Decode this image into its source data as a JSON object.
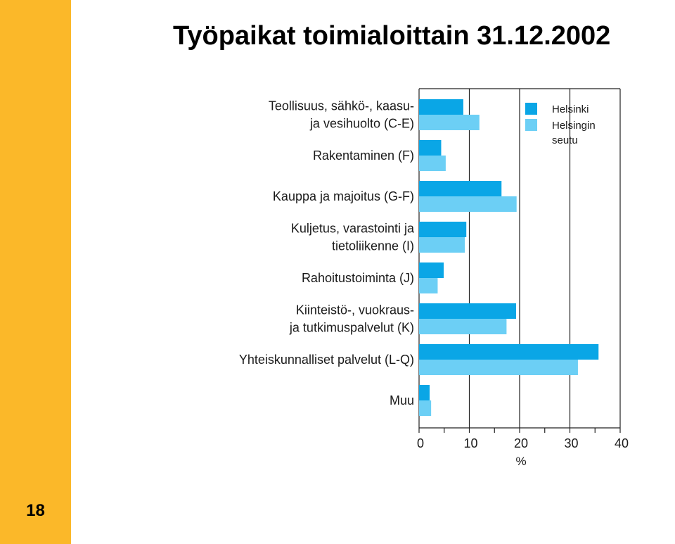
{
  "page": {
    "number": "18"
  },
  "chart_data": {
    "type": "bar",
    "orientation": "horizontal",
    "title": "Työpaikat toimialoittain 31.12.2002",
    "categories": [
      [
        "Teollisuus, sähkö-, kaasu-",
        "ja vesihuolto (C-E)"
      ],
      [
        "Rakentaminen (F)"
      ],
      [
        "Kauppa ja majoitus (G-F)"
      ],
      [
        "Kuljetus, varastointi ja",
        "tietoliikenne (I)"
      ],
      [
        "Rahoitustoiminta (J)"
      ],
      [
        "Kiinteistö-, vuokraus-",
        "ja tutkimuspalvelut (K)"
      ],
      [
        "Yhteiskunnalliset palvelut (L-Q)"
      ],
      [
        "Muu"
      ]
    ],
    "series": [
      {
        "name": "Helsinki",
        "color": "#0aa6e6",
        "values": [
          8.8,
          4.4,
          16.4,
          9.4,
          4.9,
          19.3,
          35.7,
          2.1
        ]
      },
      {
        "name": [
          "Helsingin",
          "seutu"
        ],
        "color": "#6ccff5",
        "values": [
          12.0,
          5.3,
          19.4,
          9.1,
          3.7,
          17.4,
          31.6,
          2.4
        ]
      }
    ],
    "xlim": [
      0,
      40
    ],
    "xticks": [
      "0",
      "10",
      "20",
      "30",
      "40"
    ],
    "xlabel": "%",
    "grid": "vertical lines at 10, 20, 30",
    "legend_position": "top-right"
  }
}
